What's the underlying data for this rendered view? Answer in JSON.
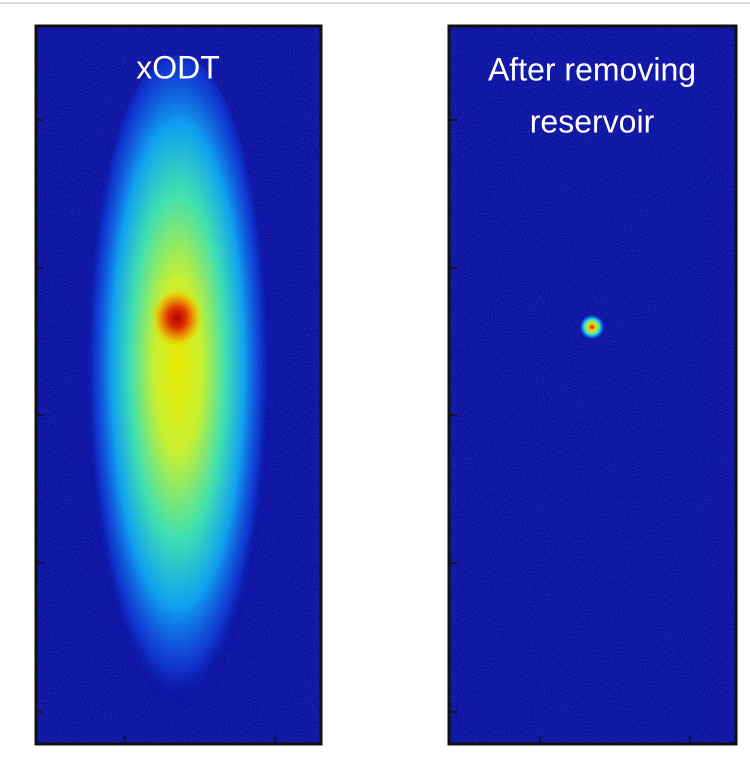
{
  "panels": [
    {
      "title": [
        "xODT"
      ]
    },
    {
      "title": [
        "After removing",
        "reservoir"
      ]
    }
  ]
}
